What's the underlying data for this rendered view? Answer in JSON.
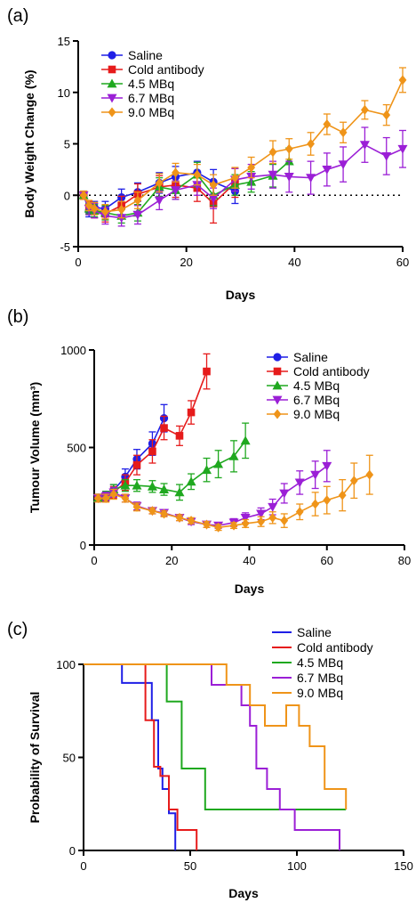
{
  "chart_data": [
    {
      "type": "line",
      "panel_label": "(a)",
      "xlabel": "Days",
      "ylabel": "Body Weight Change (%)",
      "xlim": [
        0,
        60
      ],
      "ylim": [
        -5,
        15
      ],
      "x_ticks": [
        0,
        20,
        40,
        60
      ],
      "y_ticks": [
        -5,
        0,
        5,
        10,
        15
      ],
      "reference_line": {
        "y": 0,
        "style": "dotted"
      },
      "legend_position": "top-left",
      "series": [
        {
          "name": "Saline",
          "color": "#1f1fe6",
          "marker": "circle",
          "x": [
            1,
            2,
            3,
            5,
            8,
            11,
            15,
            18,
            22,
            25,
            29
          ],
          "y": [
            0.0,
            -1.5,
            -1.2,
            -1.3,
            -0.2,
            0.3,
            1.2,
            1.8,
            2.2,
            1.3,
            0.4
          ],
          "err": [
            0.4,
            0.6,
            0.6,
            0.7,
            0.8,
            0.9,
            1.0,
            1.0,
            1.1,
            1.2,
            1.2
          ]
        },
        {
          "name": "Cold antibody",
          "color": "#e61b1b",
          "marker": "square",
          "x": [
            1,
            2,
            3,
            5,
            8,
            11,
            15,
            18,
            22,
            25,
            29
          ],
          "y": [
            0.0,
            -1.2,
            -1.5,
            -1.8,
            -1.0,
            0.1,
            0.8,
            1.0,
            0.7,
            -0.8,
            1.2
          ],
          "err": [
            0.4,
            0.6,
            0.7,
            0.8,
            0.9,
            1.0,
            1.1,
            1.2,
            1.3,
            1.9,
            1.4
          ]
        },
        {
          "name": "4.5 MBq",
          "color": "#1fa81f",
          "marker": "triangle",
          "x": [
            1,
            2,
            3,
            5,
            8,
            11,
            15,
            18,
            22,
            25,
            29,
            32,
            36,
            39
          ],
          "y": [
            0.0,
            -1.3,
            -1.5,
            -1.7,
            -2.0,
            -1.7,
            0.8,
            0.5,
            2.0,
            0.0,
            1.0,
            1.3,
            1.9,
            3.3
          ],
          "err": [
            0.4,
            0.5,
            0.6,
            0.7,
            0.7,
            0.8,
            0.9,
            0.9,
            1.2,
            1.0,
            1.0,
            1.0,
            1.1,
            1.3
          ]
        },
        {
          "name": "6.7 MBq",
          "color": "#9b1fd6",
          "marker": "triangle-down",
          "x": [
            1,
            2,
            3,
            5,
            8,
            11,
            15,
            18,
            22,
            25,
            29,
            32,
            36,
            39,
            43,
            46,
            49,
            53,
            57,
            60
          ],
          "y": [
            0.0,
            -1.3,
            -1.5,
            -2.0,
            -2.2,
            -1.9,
            -0.5,
            0.5,
            1.0,
            -0.3,
            1.5,
            1.8,
            2.0,
            1.8,
            1.7,
            2.5,
            3.0,
            4.9,
            3.8,
            4.5
          ],
          "err": [
            0.4,
            0.6,
            0.7,
            0.8,
            0.8,
            0.9,
            0.9,
            0.9,
            1.0,
            1.0,
            1.1,
            1.2,
            1.3,
            1.5,
            1.6,
            1.6,
            1.7,
            1.7,
            1.8,
            1.8
          ]
        },
        {
          "name": "9.0 MBq",
          "color": "#ef9419",
          "marker": "diamond",
          "x": [
            1,
            2,
            3,
            5,
            8,
            11,
            15,
            18,
            22,
            25,
            29,
            32,
            36,
            39,
            43,
            46,
            49,
            53,
            57,
            60
          ],
          "y": [
            0.0,
            -1.0,
            -1.3,
            -1.6,
            -1.4,
            -0.5,
            1.2,
            2.2,
            2.0,
            1.0,
            1.7,
            2.7,
            4.2,
            4.5,
            5.0,
            6.9,
            6.1,
            8.3,
            7.8,
            11.2
          ],
          "err": [
            0.4,
            0.5,
            0.6,
            0.7,
            0.8,
            0.8,
            0.9,
            0.9,
            1.0,
            1.0,
            1.0,
            1.0,
            1.1,
            1.0,
            1.1,
            1.0,
            1.0,
            0.9,
            1.0,
            1.2
          ]
        }
      ]
    },
    {
      "type": "line",
      "panel_label": "(b)",
      "xlabel": "Days",
      "ylabel": "Tumour Volume (mm³)",
      "xlim": [
        0,
        80
      ],
      "ylim": [
        0,
        1000
      ],
      "x_ticks": [
        0,
        20,
        40,
        60,
        80
      ],
      "y_ticks": [
        0,
        500,
        1000
      ],
      "legend_position": "top-right",
      "series": [
        {
          "name": "Saline",
          "color": "#1f1fe6",
          "marker": "circle",
          "x": [
            1,
            3,
            5,
            8,
            11,
            15,
            18
          ],
          "y": [
            240,
            250,
            280,
            350,
            440,
            520,
            650
          ],
          "err": [
            20,
            25,
            30,
            40,
            50,
            60,
            70
          ]
        },
        {
          "name": "Cold antibody",
          "color": "#e61b1b",
          "marker": "square",
          "x": [
            1,
            3,
            5,
            8,
            11,
            15,
            18,
            22,
            25,
            29
          ],
          "y": [
            240,
            245,
            270,
            320,
            410,
            480,
            600,
            560,
            680,
            890
          ],
          "err": [
            20,
            25,
            30,
            40,
            50,
            60,
            60,
            50,
            60,
            90
          ]
        },
        {
          "name": "4.5 MBq",
          "color": "#1fa81f",
          "marker": "triangle",
          "x": [
            1,
            3,
            5,
            8,
            11,
            15,
            18,
            22,
            25,
            29,
            32,
            36,
            39
          ],
          "y": [
            240,
            255,
            285,
            305,
            305,
            300,
            285,
            270,
            325,
            385,
            415,
            455,
            535
          ],
          "err": [
            20,
            20,
            25,
            30,
            30,
            30,
            30,
            40,
            40,
            60,
            70,
            80,
            90
          ]
        },
        {
          "name": "6.7 MBq",
          "color": "#9b1fd6",
          "marker": "triangle-down",
          "x": [
            1,
            3,
            5,
            8,
            11,
            15,
            18,
            22,
            25,
            29,
            32,
            36,
            39,
            43,
            46,
            49,
            53,
            57,
            60
          ],
          "y": [
            240,
            250,
            270,
            240,
            200,
            175,
            165,
            140,
            120,
            105,
            100,
            115,
            140,
            160,
            195,
            265,
            320,
            360,
            405
          ],
          "err": [
            20,
            20,
            25,
            20,
            20,
            15,
            15,
            15,
            15,
            15,
            15,
            20,
            25,
            30,
            40,
            50,
            60,
            70,
            80
          ]
        },
        {
          "name": "9.0 MBq",
          "color": "#ef9419",
          "marker": "diamond",
          "x": [
            1,
            3,
            5,
            8,
            11,
            15,
            18,
            22,
            25,
            29,
            32,
            36,
            39,
            43,
            46,
            49,
            53,
            57,
            60,
            64,
            67,
            71
          ],
          "y": [
            240,
            240,
            260,
            240,
            195,
            175,
            160,
            140,
            125,
            105,
            90,
            100,
            110,
            120,
            140,
            125,
            170,
            210,
            230,
            255,
            330,
            360
          ],
          "err": [
            20,
            20,
            25,
            20,
            20,
            15,
            15,
            15,
            15,
            15,
            15,
            15,
            20,
            25,
            30,
            35,
            40,
            60,
            70,
            80,
            90,
            100
          ]
        }
      ]
    },
    {
      "type": "line",
      "subtype": "survival-step",
      "panel_label": "(c)",
      "xlabel": "Days",
      "ylabel": "Probability of Survival",
      "xlim": [
        0,
        150
      ],
      "ylim": [
        0,
        100
      ],
      "x_ticks": [
        0,
        50,
        100,
        150
      ],
      "y_ticks": [
        0,
        50,
        100
      ],
      "legend_position": "top-right",
      "series": [
        {
          "name": "Saline",
          "color": "#1f1fe6",
          "x": [
            0,
            18,
            32,
            35,
            37,
            40,
            43
          ],
          "y": [
            100,
            90,
            70,
            44,
            33,
            20,
            0
          ]
        },
        {
          "name": "Cold antibody",
          "color": "#e61b1b",
          "x": [
            0,
            29,
            33,
            36,
            40,
            44,
            53
          ],
          "y": [
            100,
            70,
            45,
            40,
            22,
            11,
            0
          ]
        },
        {
          "name": "4.5 MBq",
          "color": "#1fa81f",
          "x": [
            0,
            39,
            46,
            57,
            123
          ],
          "y": [
            100,
            80,
            44,
            22,
            22
          ]
        },
        {
          "name": "6.7 MBq",
          "color": "#9b1fd6",
          "x": [
            0,
            60,
            74,
            78,
            81,
            86,
            92,
            99,
            120
          ],
          "y": [
            100,
            89,
            78,
            67,
            44,
            33,
            22,
            11,
            0
          ]
        },
        {
          "name": "9.0 MBq",
          "color": "#ef9419",
          "x": [
            0,
            67,
            78,
            85,
            95,
            101,
            106,
            113,
            123
          ],
          "y": [
            100,
            89,
            78,
            67,
            78,
            67,
            56,
            33,
            22
          ]
        }
      ]
    }
  ]
}
